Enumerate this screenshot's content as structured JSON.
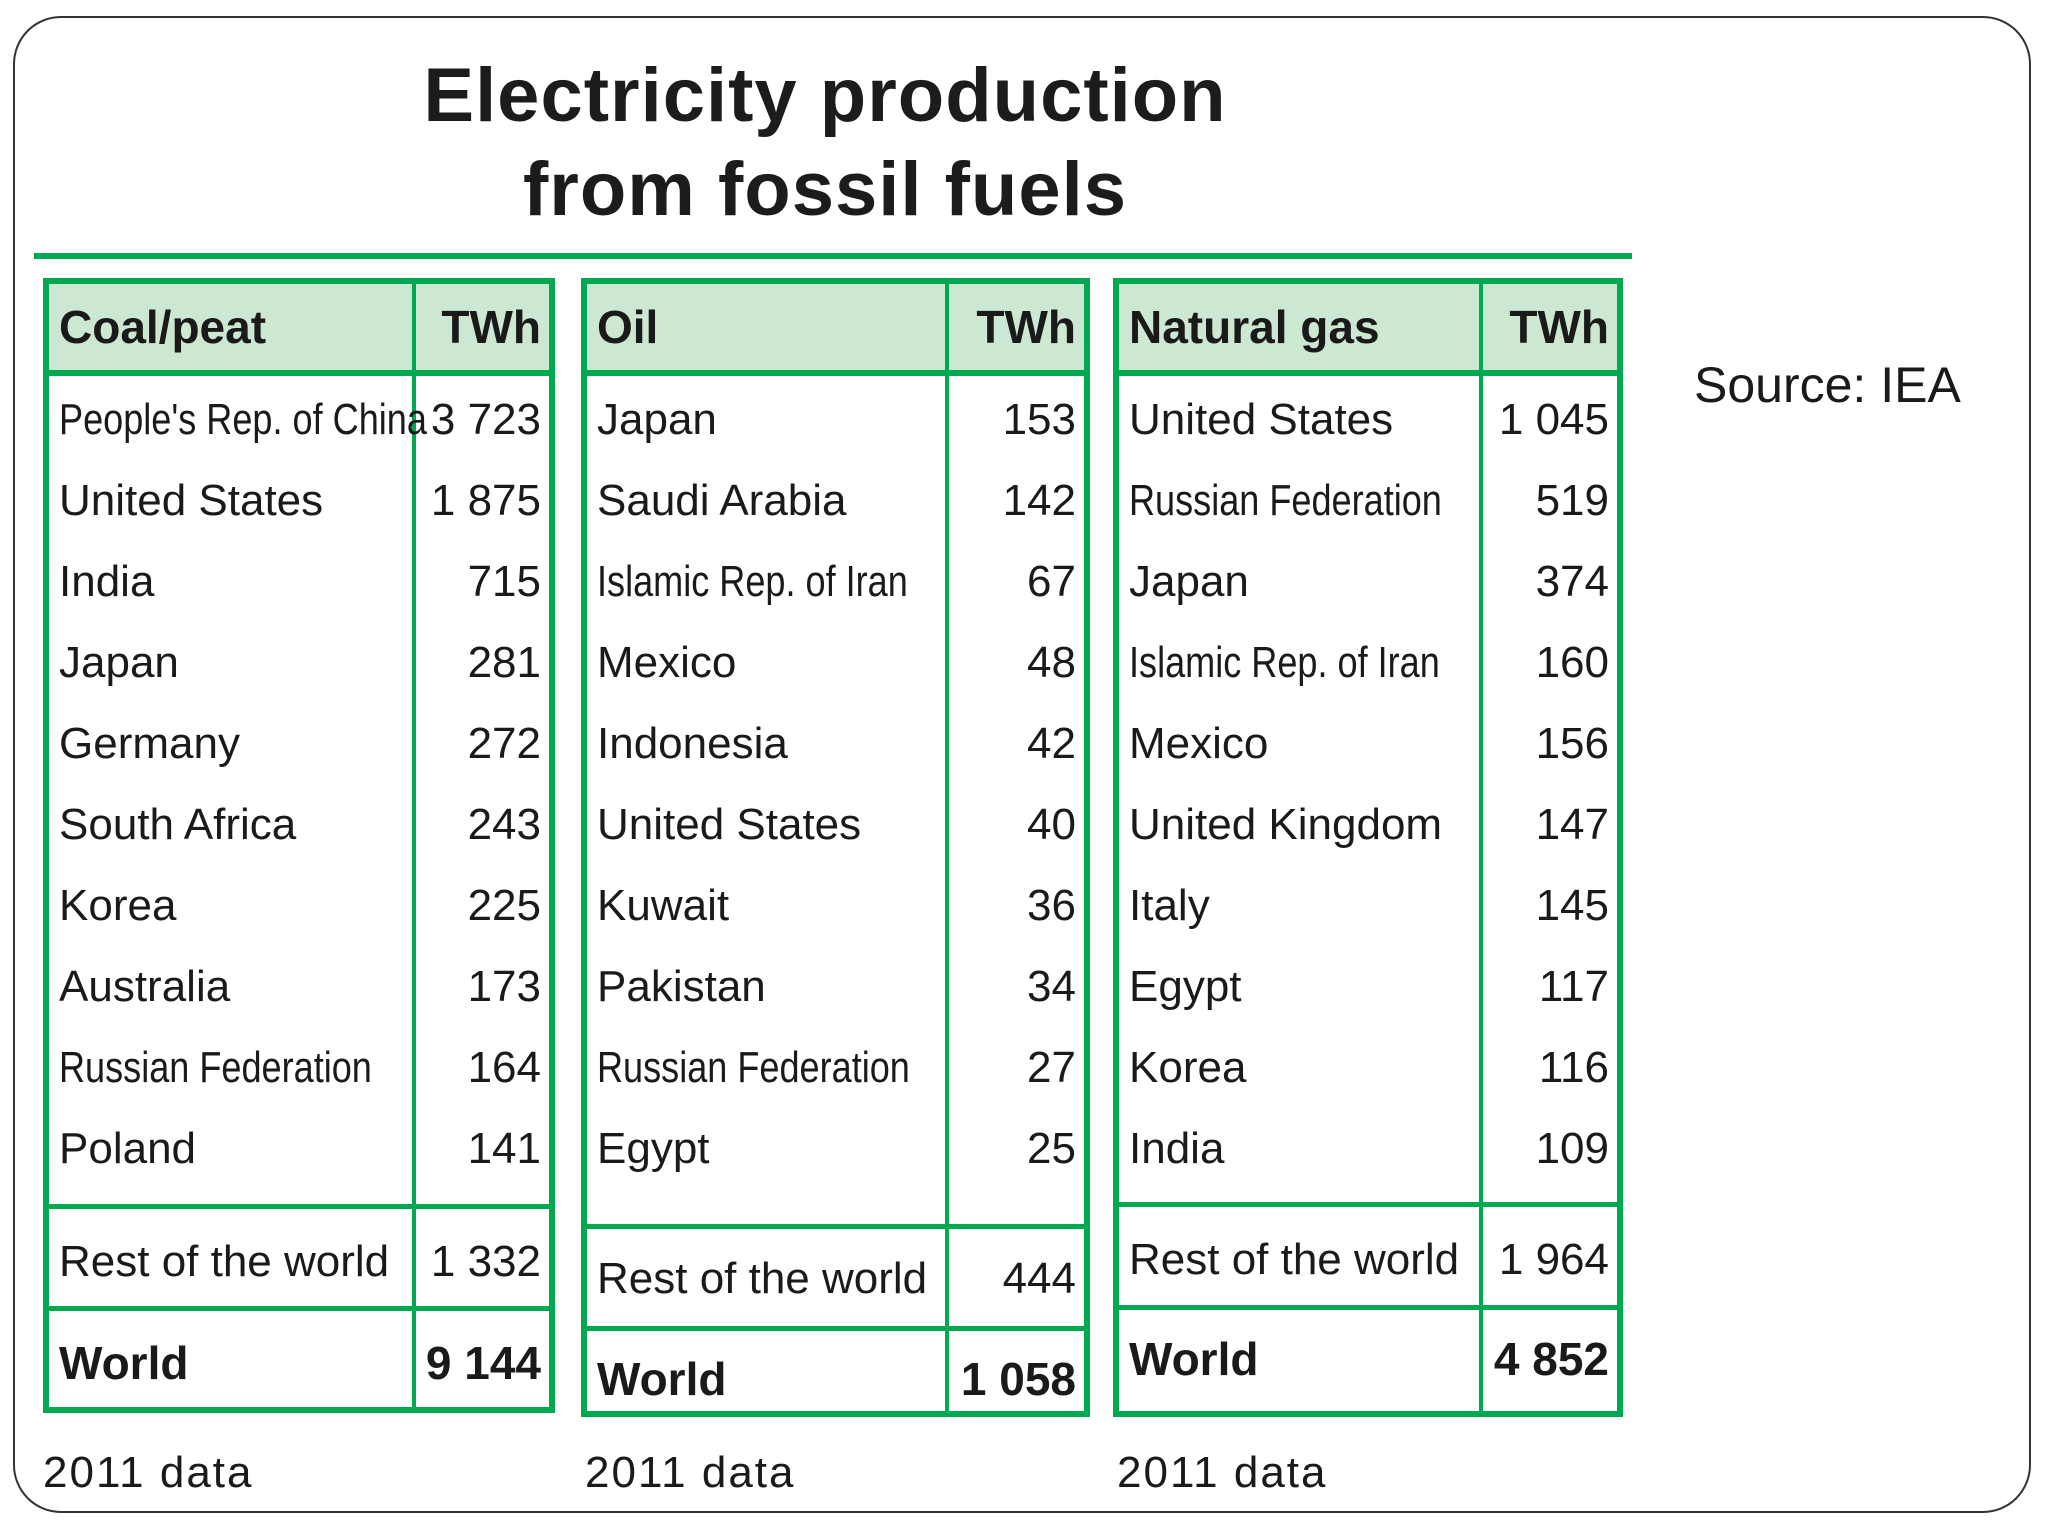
{
  "title_line1": "Electricity production",
  "title_line2": "from fossil fuels",
  "source": "Source: IEA",
  "accent_color": "#00a94f",
  "header_bg": "#cde8d2",
  "tables": [
    {
      "header": "Coal/peat",
      "unit": "TWh",
      "rows": [
        {
          "country": "People's Rep. of China",
          "value": "3 723"
        },
        {
          "country": "United States",
          "value": "1 875"
        },
        {
          "country": "India",
          "value": "715"
        },
        {
          "country": "Japan",
          "value": "281"
        },
        {
          "country": "Germany",
          "value": "272"
        },
        {
          "country": "South Africa",
          "value": "243"
        },
        {
          "country": "Korea",
          "value": "225"
        },
        {
          "country": "Australia",
          "value": "173"
        },
        {
          "country": "Russian Federation",
          "value": "164"
        },
        {
          "country": "Poland",
          "value": "141"
        }
      ],
      "rest_label": "Rest of the world",
      "rest_value": "1 332",
      "world_label": "World",
      "world_value": "9 144",
      "note": "2011 data"
    },
    {
      "header": "Oil",
      "unit": "TWh",
      "rows": [
        {
          "country": "Japan",
          "value": "153"
        },
        {
          "country": "Saudi Arabia",
          "value": "142"
        },
        {
          "country": "Islamic Rep. of Iran",
          "value": "67"
        },
        {
          "country": "Mexico",
          "value": "48"
        },
        {
          "country": "Indonesia",
          "value": "42"
        },
        {
          "country": "United States",
          "value": "40"
        },
        {
          "country": "Kuwait",
          "value": "36"
        },
        {
          "country": "Pakistan",
          "value": "34"
        },
        {
          "country": "Russian Federation",
          "value": "27"
        },
        {
          "country": "Egypt",
          "value": "25"
        }
      ],
      "rest_label": "Rest of the world",
      "rest_value": "444",
      "world_label": "World",
      "world_value": "1 058",
      "note": "2011 data"
    },
    {
      "header": "Natural gas",
      "unit": "TWh",
      "rows": [
        {
          "country": "United States",
          "value": "1 045"
        },
        {
          "country": "Russian Federation",
          "value": "519"
        },
        {
          "country": "Japan",
          "value": "374"
        },
        {
          "country": "Islamic Rep. of Iran",
          "value": "160"
        },
        {
          "country": "Mexico",
          "value": "156"
        },
        {
          "country": "United Kingdom",
          "value": "147"
        },
        {
          "country": "Italy",
          "value": "145"
        },
        {
          "country": "Egypt",
          "value": "117"
        },
        {
          "country": "Korea",
          "value": "116"
        },
        {
          "country": "India",
          "value": "109"
        }
      ],
      "rest_label": "Rest of the world",
      "rest_value": "1 964",
      "world_label": "World",
      "world_value": "4 852",
      "note": "2011 data"
    }
  ]
}
